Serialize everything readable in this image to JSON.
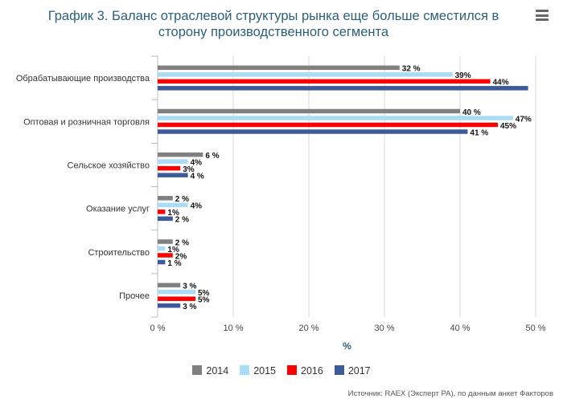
{
  "title": "График 3. Баланс отраслевой структуры рынка еще больше сместился в сторону производственного сегмента",
  "menu_icon": "hamburger-menu-icon",
  "source": "Источник: RAEX (Эксперт РА), по данным анкет Факторов",
  "chart_data": {
    "type": "bar",
    "orientation": "horizontal",
    "categories": [
      "Обрабатывающие производства",
      "Оптовая и розничная торговля",
      "Сельское хозяйство",
      "Оказание услуг",
      "Строительство",
      "Прочее"
    ],
    "series": [
      {
        "name": "2014",
        "color": "#808080",
        "values": [
          32,
          40,
          6,
          2,
          2,
          3
        ],
        "labels": [
          "32 %",
          "40 %",
          "6 %",
          "2 %",
          "2 %",
          "3 %"
        ]
      },
      {
        "name": "2015",
        "color": "#aadcf5",
        "values": [
          39,
          47,
          4,
          4,
          1,
          5
        ],
        "labels": [
          "39%",
          "47%",
          "4%",
          "4%",
          "1%",
          "5%"
        ]
      },
      {
        "name": "2016",
        "color": "#ff0000",
        "values": [
          44,
          45,
          3,
          1,
          2,
          5
        ],
        "labels": [
          "44%",
          "45%",
          "3%",
          "1%",
          "2%",
          "5%"
        ]
      },
      {
        "name": "2017",
        "color": "#3d5a9a",
        "values": [
          49,
          41,
          4,
          2,
          1,
          3
        ],
        "labels": [
          "",
          "41 %",
          "4 %",
          "2 %",
          "1 %",
          "3 %"
        ]
      }
    ],
    "xlim": [
      0,
      50
    ],
    "xticks": [
      "0 %",
      "10 %",
      "20 %",
      "30 %",
      "40 %",
      "50 %"
    ],
    "xlabel": "%",
    "grid": true,
    "legend_position": "bottom"
  }
}
